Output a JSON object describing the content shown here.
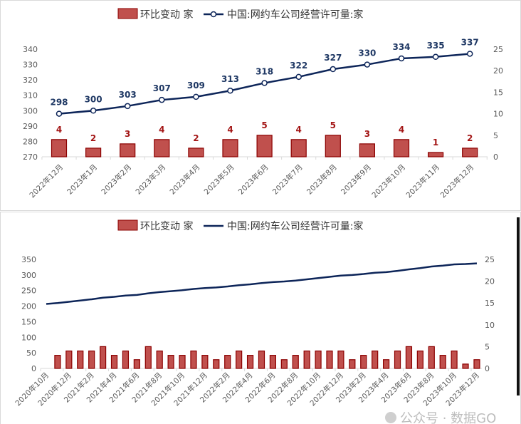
{
  "colors": {
    "bar": "#c0504d",
    "bar_edge": "#8b0000",
    "line": "#0d2559",
    "bar_label": "#a31515",
    "line_label": "#1f3864"
  },
  "watermark": "公众号 · 数据GO",
  "chart_data": [
    {
      "type": "bar+line",
      "legend": {
        "placement": "top",
        "entries": [
          "环比变动 家",
          "中国:网约车公司经营许可量:家"
        ]
      },
      "categories": [
        "2022年12月",
        "2023年1月",
        "2023年2月",
        "2023年3月",
        "2023年4月",
        "2023年5月",
        "2023年6月",
        "2023年7月",
        "2023年8月",
        "2023年9月",
        "2023年10月",
        "2023年11月",
        "2023年12月"
      ],
      "series": [
        {
          "name": "环比变动 家",
          "type": "bar",
          "axis": "right",
          "values": [
            4,
            2,
            3,
            4,
            2,
            4,
            5,
            4,
            5,
            3,
            4,
            1,
            2
          ],
          "data_labels": true
        },
        {
          "name": "中国:网约车公司经营许可量:家",
          "type": "line",
          "markers": true,
          "axis": "left",
          "values": [
            298,
            300,
            303,
            307,
            309,
            313,
            318,
            322,
            327,
            330,
            334,
            335,
            337
          ],
          "data_labels": true
        }
      ],
      "y_left": {
        "range": [
          270,
          340
        ],
        "ticks": [
          270,
          280,
          290,
          300,
          310,
          320,
          330,
          340
        ]
      },
      "y_right": {
        "range": [
          0,
          25
        ],
        "ticks": [
          0,
          5,
          10,
          15,
          20,
          25
        ]
      },
      "grid": false
    },
    {
      "type": "bar+line",
      "legend": {
        "placement": "top",
        "entries": [
          "环比变动 家",
          "中国:网约车公司经营许可量:家"
        ]
      },
      "categories": [
        "2020年10月",
        "2020年11月",
        "2020年12月",
        "2021年1月",
        "2021年2月",
        "2021年3月",
        "2021年4月",
        "2021年5月",
        "2021年6月",
        "2021年7月",
        "2021年8月",
        "2021年9月",
        "2021年10月",
        "2021年11月",
        "2021年12月",
        "2022年1月",
        "2022年2月",
        "2022年3月",
        "2022年4月",
        "2022年5月",
        "2022年6月",
        "2022年7月",
        "2022年8月",
        "2022年9月",
        "2022年10月",
        "2022年11月",
        "2022年12月",
        "2023年1月",
        "2023年2月",
        "2023年3月",
        "2023年4月",
        "2023年5月",
        "2023年6月",
        "2023年7月",
        "2023年8月",
        "2023年9月",
        "2023年10月",
        "2023年11月",
        "2023年12月"
      ],
      "x_tick_labels": [
        "2020年10月",
        "2020年12月",
        "2021年2月",
        "2021年4月",
        "2021年6月",
        "2021年8月",
        "2021年10月",
        "2021年12月",
        "2022年2月",
        "2022年4月",
        "2022年6月",
        "2022年8月",
        "2022年10月",
        "2022年12月",
        "2023年2月",
        "2023年4月",
        "2023年6月",
        "2023年8月",
        "2023年10月",
        "2023年12月"
      ],
      "series": [
        {
          "name": "环比变动 家",
          "type": "bar",
          "axis": "right",
          "values": [
            null,
            3,
            4,
            4,
            4,
            5,
            3,
            4,
            2,
            5,
            4,
            3,
            3,
            4,
            3,
            2,
            3,
            4,
            3,
            4,
            3,
            2,
            3,
            4,
            4,
            4,
            4,
            2,
            3,
            4,
            2,
            4,
            5,
            4,
            5,
            3,
            4,
            1,
            2
          ]
        },
        {
          "name": "中国:网约车公司经营许可量:家",
          "type": "line",
          "axis": "left",
          "values": [
            207,
            210,
            214,
            218,
            222,
            227,
            230,
            234,
            236,
            241,
            245,
            248,
            251,
            255,
            258,
            260,
            263,
            267,
            270,
            274,
            277,
            279,
            282,
            286,
            290,
            294,
            298,
            300,
            303,
            307,
            309,
            313,
            318,
            322,
            327,
            330,
            334,
            335,
            337
          ]
        }
      ],
      "y_left": {
        "range": [
          0,
          350
        ],
        "ticks": [
          0,
          50,
          100,
          150,
          200,
          250,
          300,
          350
        ]
      },
      "y_right": {
        "range": [
          0,
          25
        ],
        "ticks": [
          0,
          5,
          10,
          15,
          20,
          25
        ]
      },
      "grid": false
    }
  ]
}
